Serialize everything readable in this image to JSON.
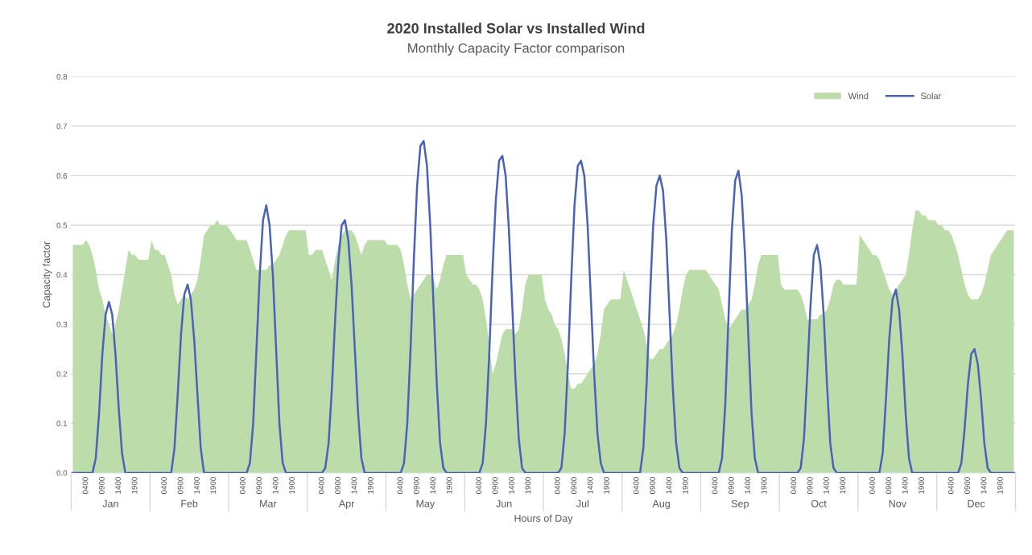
{
  "chart_data": {
    "type": "line",
    "title": "2020 Installed Solar vs Installed Wind",
    "subtitle": "Monthly Capacity Factor comparison",
    "xlabel": "Hours of Day",
    "ylabel": "Capacity factor",
    "categories": [
      null,
      null,
      null,
      null,
      "0400",
      null,
      null,
      null,
      null,
      "0900",
      null,
      null,
      null,
      null,
      "1400",
      null,
      null,
      null,
      null,
      "1900",
      null,
      null,
      null,
      null,
      null,
      null,
      null,
      null,
      "0400",
      null,
      null,
      null,
      null,
      "0900",
      null,
      null,
      null,
      null,
      "1400",
      null,
      null,
      null,
      null,
      "1900",
      null,
      null,
      null,
      null,
      null,
      null,
      null,
      null,
      "0400",
      null,
      null,
      null,
      null,
      "0900",
      null,
      null,
      null,
      null,
      "1400",
      null,
      null,
      null,
      null,
      "1900",
      null,
      null,
      null,
      null,
      null,
      null,
      null,
      null,
      "0400",
      null,
      null,
      null,
      null,
      "0900",
      null,
      null,
      null,
      null,
      "1400",
      null,
      null,
      null,
      null,
      "1900",
      null,
      null,
      null,
      null,
      null,
      null,
      null,
      null,
      "0400",
      null,
      null,
      null,
      null,
      "0900",
      null,
      null,
      null,
      null,
      "1400",
      null,
      null,
      null,
      null,
      "1900",
      null,
      null,
      null,
      null,
      null,
      null,
      null,
      null,
      "0400",
      null,
      null,
      null,
      null,
      "0900",
      null,
      null,
      null,
      null,
      "1400",
      null,
      null,
      null,
      null,
      "1900",
      null,
      null,
      null,
      null,
      null,
      null,
      null,
      null,
      "0400",
      null,
      null,
      null,
      null,
      "0900",
      null,
      null,
      null,
      null,
      "1400",
      null,
      null,
      null,
      null,
      "1900",
      null,
      null,
      null,
      null,
      null,
      null,
      null,
      null,
      "0400",
      null,
      null,
      null,
      null,
      "0900",
      null,
      null,
      null,
      null,
      "1400",
      null,
      null,
      null,
      null,
      "1900",
      null,
      null,
      null,
      null,
      null,
      null,
      null,
      null,
      "0400",
      null,
      null,
      null,
      null,
      "0900",
      null,
      null,
      null,
      null,
      "1400",
      null,
      null,
      null,
      null,
      "1900",
      null,
      null,
      null,
      null,
      null,
      null,
      null,
      null,
      "0400",
      null,
      null,
      null,
      null,
      "0900",
      null,
      null,
      null,
      null,
      "1400",
      null,
      null,
      null,
      null,
      "1900",
      null,
      null,
      null,
      null,
      null,
      null,
      null,
      null,
      "0400",
      null,
      null,
      null,
      null,
      "0900",
      null,
      null,
      null,
      null,
      "1400",
      null,
      null,
      null,
      null,
      "1900",
      null,
      null,
      null,
      null,
      null,
      null,
      null,
      null,
      "0400",
      null,
      null,
      null,
      null,
      "0900",
      null,
      null,
      null,
      null,
      "1400",
      null,
      null,
      null,
      null,
      "1900",
      null,
      null,
      null,
      null
    ],
    "series": [
      {
        "name": "Wind",
        "type": "area",
        "color": "#bcdcaa",
        "values": [
          0.46,
          0.46,
          0.46,
          0.46,
          0.47,
          0.46,
          0.44,
          0.41,
          0.37,
          0.35,
          0.32,
          0.3,
          0.28,
          0.3,
          0.33,
          0.37,
          0.41,
          0.45,
          0.44,
          0.44,
          0.43,
          0.43,
          0.43,
          0.43,
          0.47,
          0.45,
          0.45,
          0.44,
          0.44,
          0.42,
          0.4,
          0.36,
          0.34,
          0.35,
          0.36,
          0.35,
          0.36,
          0.37,
          0.39,
          0.43,
          0.48,
          0.49,
          0.5,
          0.5,
          0.51,
          0.5,
          0.5,
          0.5,
          0.49,
          0.48,
          0.47,
          0.47,
          0.47,
          0.47,
          0.45,
          0.43,
          0.41,
          0.41,
          0.41,
          0.41,
          0.42,
          0.42,
          0.43,
          0.44,
          0.46,
          0.48,
          0.49,
          0.49,
          0.49,
          0.49,
          0.49,
          0.49,
          0.44,
          0.44,
          0.45,
          0.45,
          0.45,
          0.43,
          0.41,
          0.39,
          0.43,
          0.46,
          0.48,
          0.49,
          0.49,
          0.49,
          0.48,
          0.46,
          0.44,
          0.46,
          0.47,
          0.47,
          0.47,
          0.47,
          0.47,
          0.47,
          0.46,
          0.46,
          0.46,
          0.46,
          0.45,
          0.42,
          0.38,
          0.35,
          0.36,
          0.37,
          0.38,
          0.39,
          0.4,
          0.4,
          0.39,
          0.37,
          0.39,
          0.42,
          0.44,
          0.44,
          0.44,
          0.44,
          0.44,
          0.44,
          0.4,
          0.39,
          0.38,
          0.38,
          0.37,
          0.35,
          0.31,
          0.26,
          0.2,
          0.22,
          0.25,
          0.28,
          0.29,
          0.29,
          0.29,
          0.28,
          0.29,
          0.33,
          0.38,
          0.4,
          0.4,
          0.4,
          0.4,
          0.4,
          0.35,
          0.33,
          0.32,
          0.3,
          0.29,
          0.27,
          0.24,
          0.2,
          0.17,
          0.17,
          0.18,
          0.18,
          0.19,
          0.2,
          0.21,
          0.22,
          0.24,
          0.28,
          0.33,
          0.34,
          0.35,
          0.35,
          0.35,
          0.35,
          0.41,
          0.39,
          0.37,
          0.35,
          0.33,
          0.31,
          0.29,
          0.26,
          0.23,
          0.23,
          0.24,
          0.25,
          0.25,
          0.26,
          0.27,
          0.28,
          0.3,
          0.33,
          0.37,
          0.4,
          0.41,
          0.41,
          0.41,
          0.41,
          0.41,
          0.41,
          0.4,
          0.39,
          0.38,
          0.37,
          0.34,
          0.31,
          0.29,
          0.3,
          0.31,
          0.32,
          0.33,
          0.33,
          0.34,
          0.35,
          0.38,
          0.42,
          0.44,
          0.44,
          0.44,
          0.44,
          0.44,
          0.44,
          0.38,
          0.37,
          0.37,
          0.37,
          0.37,
          0.37,
          0.36,
          0.34,
          0.31,
          0.31,
          0.31,
          0.31,
          0.32,
          0.32,
          0.33,
          0.35,
          0.38,
          0.39,
          0.39,
          0.38,
          0.38,
          0.38,
          0.38,
          0.38,
          0.48,
          0.47,
          0.46,
          0.45,
          0.44,
          0.44,
          0.43,
          0.41,
          0.39,
          0.37,
          0.36,
          0.37,
          0.38,
          0.39,
          0.4,
          0.44,
          0.49,
          0.53,
          0.53,
          0.52,
          0.52,
          0.51,
          0.51,
          0.51,
          0.5,
          0.5,
          0.49,
          0.49,
          0.48,
          0.46,
          0.44,
          0.41,
          0.38,
          0.36,
          0.35,
          0.35,
          0.35,
          0.36,
          0.38,
          0.41,
          0.44,
          0.45,
          0.46,
          0.47,
          0.48,
          0.49,
          0.49,
          0.49
        ]
      },
      {
        "name": "Solar",
        "color": "#4a63b8",
        "values": [
          0,
          0,
          0,
          0,
          0,
          0,
          0,
          0.03,
          0.12,
          0.24,
          0.32,
          0.345,
          0.32,
          0.24,
          0.13,
          0.04,
          0,
          0,
          0,
          0,
          0,
          0,
          0,
          0,
          0,
          0,
          0,
          0,
          0,
          0,
          0,
          0.05,
          0.16,
          0.28,
          0.36,
          0.38,
          0.35,
          0.27,
          0.16,
          0.05,
          0,
          0,
          0,
          0,
          0,
          0,
          0,
          0,
          0,
          0,
          0,
          0,
          0,
          0,
          0.02,
          0.1,
          0.25,
          0.4,
          0.51,
          0.54,
          0.5,
          0.4,
          0.25,
          0.1,
          0.02,
          0,
          0,
          0,
          0,
          0,
          0,
          0,
          0,
          0,
          0,
          0,
          0,
          0.01,
          0.06,
          0.17,
          0.31,
          0.43,
          0.5,
          0.51,
          0.47,
          0.38,
          0.25,
          0.12,
          0.03,
          0,
          0,
          0,
          0,
          0,
          0,
          0,
          0,
          0,
          0,
          0,
          0,
          0.02,
          0.1,
          0.25,
          0.43,
          0.58,
          0.66,
          0.67,
          0.62,
          0.5,
          0.34,
          0.18,
          0.06,
          0.01,
          0,
          0,
          0,
          0,
          0,
          0,
          0,
          0,
          0,
          0,
          0,
          0.02,
          0.1,
          0.24,
          0.41,
          0.55,
          0.63,
          0.64,
          0.6,
          0.49,
          0.34,
          0.19,
          0.07,
          0.01,
          0,
          0,
          0,
          0,
          0,
          0,
          0,
          0,
          0,
          0,
          0,
          0.01,
          0.08,
          0.22,
          0.39,
          0.54,
          0.62,
          0.63,
          0.6,
          0.5,
          0.35,
          0.2,
          0.08,
          0.02,
          0,
          0,
          0,
          0,
          0,
          0,
          0,
          0,
          0,
          0,
          0,
          0,
          0.05,
          0.18,
          0.35,
          0.5,
          0.58,
          0.6,
          0.57,
          0.47,
          0.32,
          0.17,
          0.06,
          0.01,
          0,
          0,
          0,
          0,
          0,
          0,
          0,
          0,
          0,
          0,
          0,
          0,
          0.03,
          0.14,
          0.32,
          0.49,
          0.59,
          0.61,
          0.56,
          0.44,
          0.28,
          0.12,
          0.03,
          0,
          0,
          0,
          0,
          0,
          0,
          0,
          0,
          0,
          0,
          0,
          0,
          0,
          0.01,
          0.07,
          0.2,
          0.34,
          0.44,
          0.46,
          0.42,
          0.32,
          0.18,
          0.06,
          0.01,
          0,
          0,
          0,
          0,
          0,
          0,
          0,
          0,
          0,
          0,
          0,
          0,
          0,
          0,
          0.04,
          0.15,
          0.27,
          0.35,
          0.37,
          0.33,
          0.24,
          0.12,
          0.03,
          0,
          0,
          0,
          0,
          0,
          0,
          0,
          0,
          0,
          0,
          0,
          0,
          0,
          0,
          0,
          0.02,
          0.09,
          0.18,
          0.24,
          0.25,
          0.22,
          0.15,
          0.06,
          0.01,
          0,
          0,
          0,
          0,
          0,
          0,
          0,
          0
        ]
      }
    ],
    "annotations": [
      "Jan",
      "Feb",
      "Mar",
      "Apr",
      "May",
      "Jun",
      "Jul",
      "Aug",
      "Sep",
      "Oct",
      "Nov",
      "Dec"
    ],
    "ylim": [
      0,
      0.8
    ],
    "yticks": [
      {
        "value": 0,
        "label": "0.0"
      },
      {
        "value": 0.1,
        "label": "0.1"
      },
      {
        "value": 0.2,
        "label": "0.2"
      },
      {
        "value": 0.3,
        "label": "0.3"
      },
      {
        "value": 0.4,
        "label": "0.4"
      },
      {
        "value": 0.5,
        "label": "0.5"
      },
      {
        "value": 0.6,
        "label": "0.6"
      },
      {
        "value": 0.7,
        "label": "0.7"
      },
      {
        "value": 0.8,
        "label": "0.8"
      }
    ],
    "grid": "y",
    "legend": "top right",
    "marker": "none",
    "line_style": "solid"
  }
}
